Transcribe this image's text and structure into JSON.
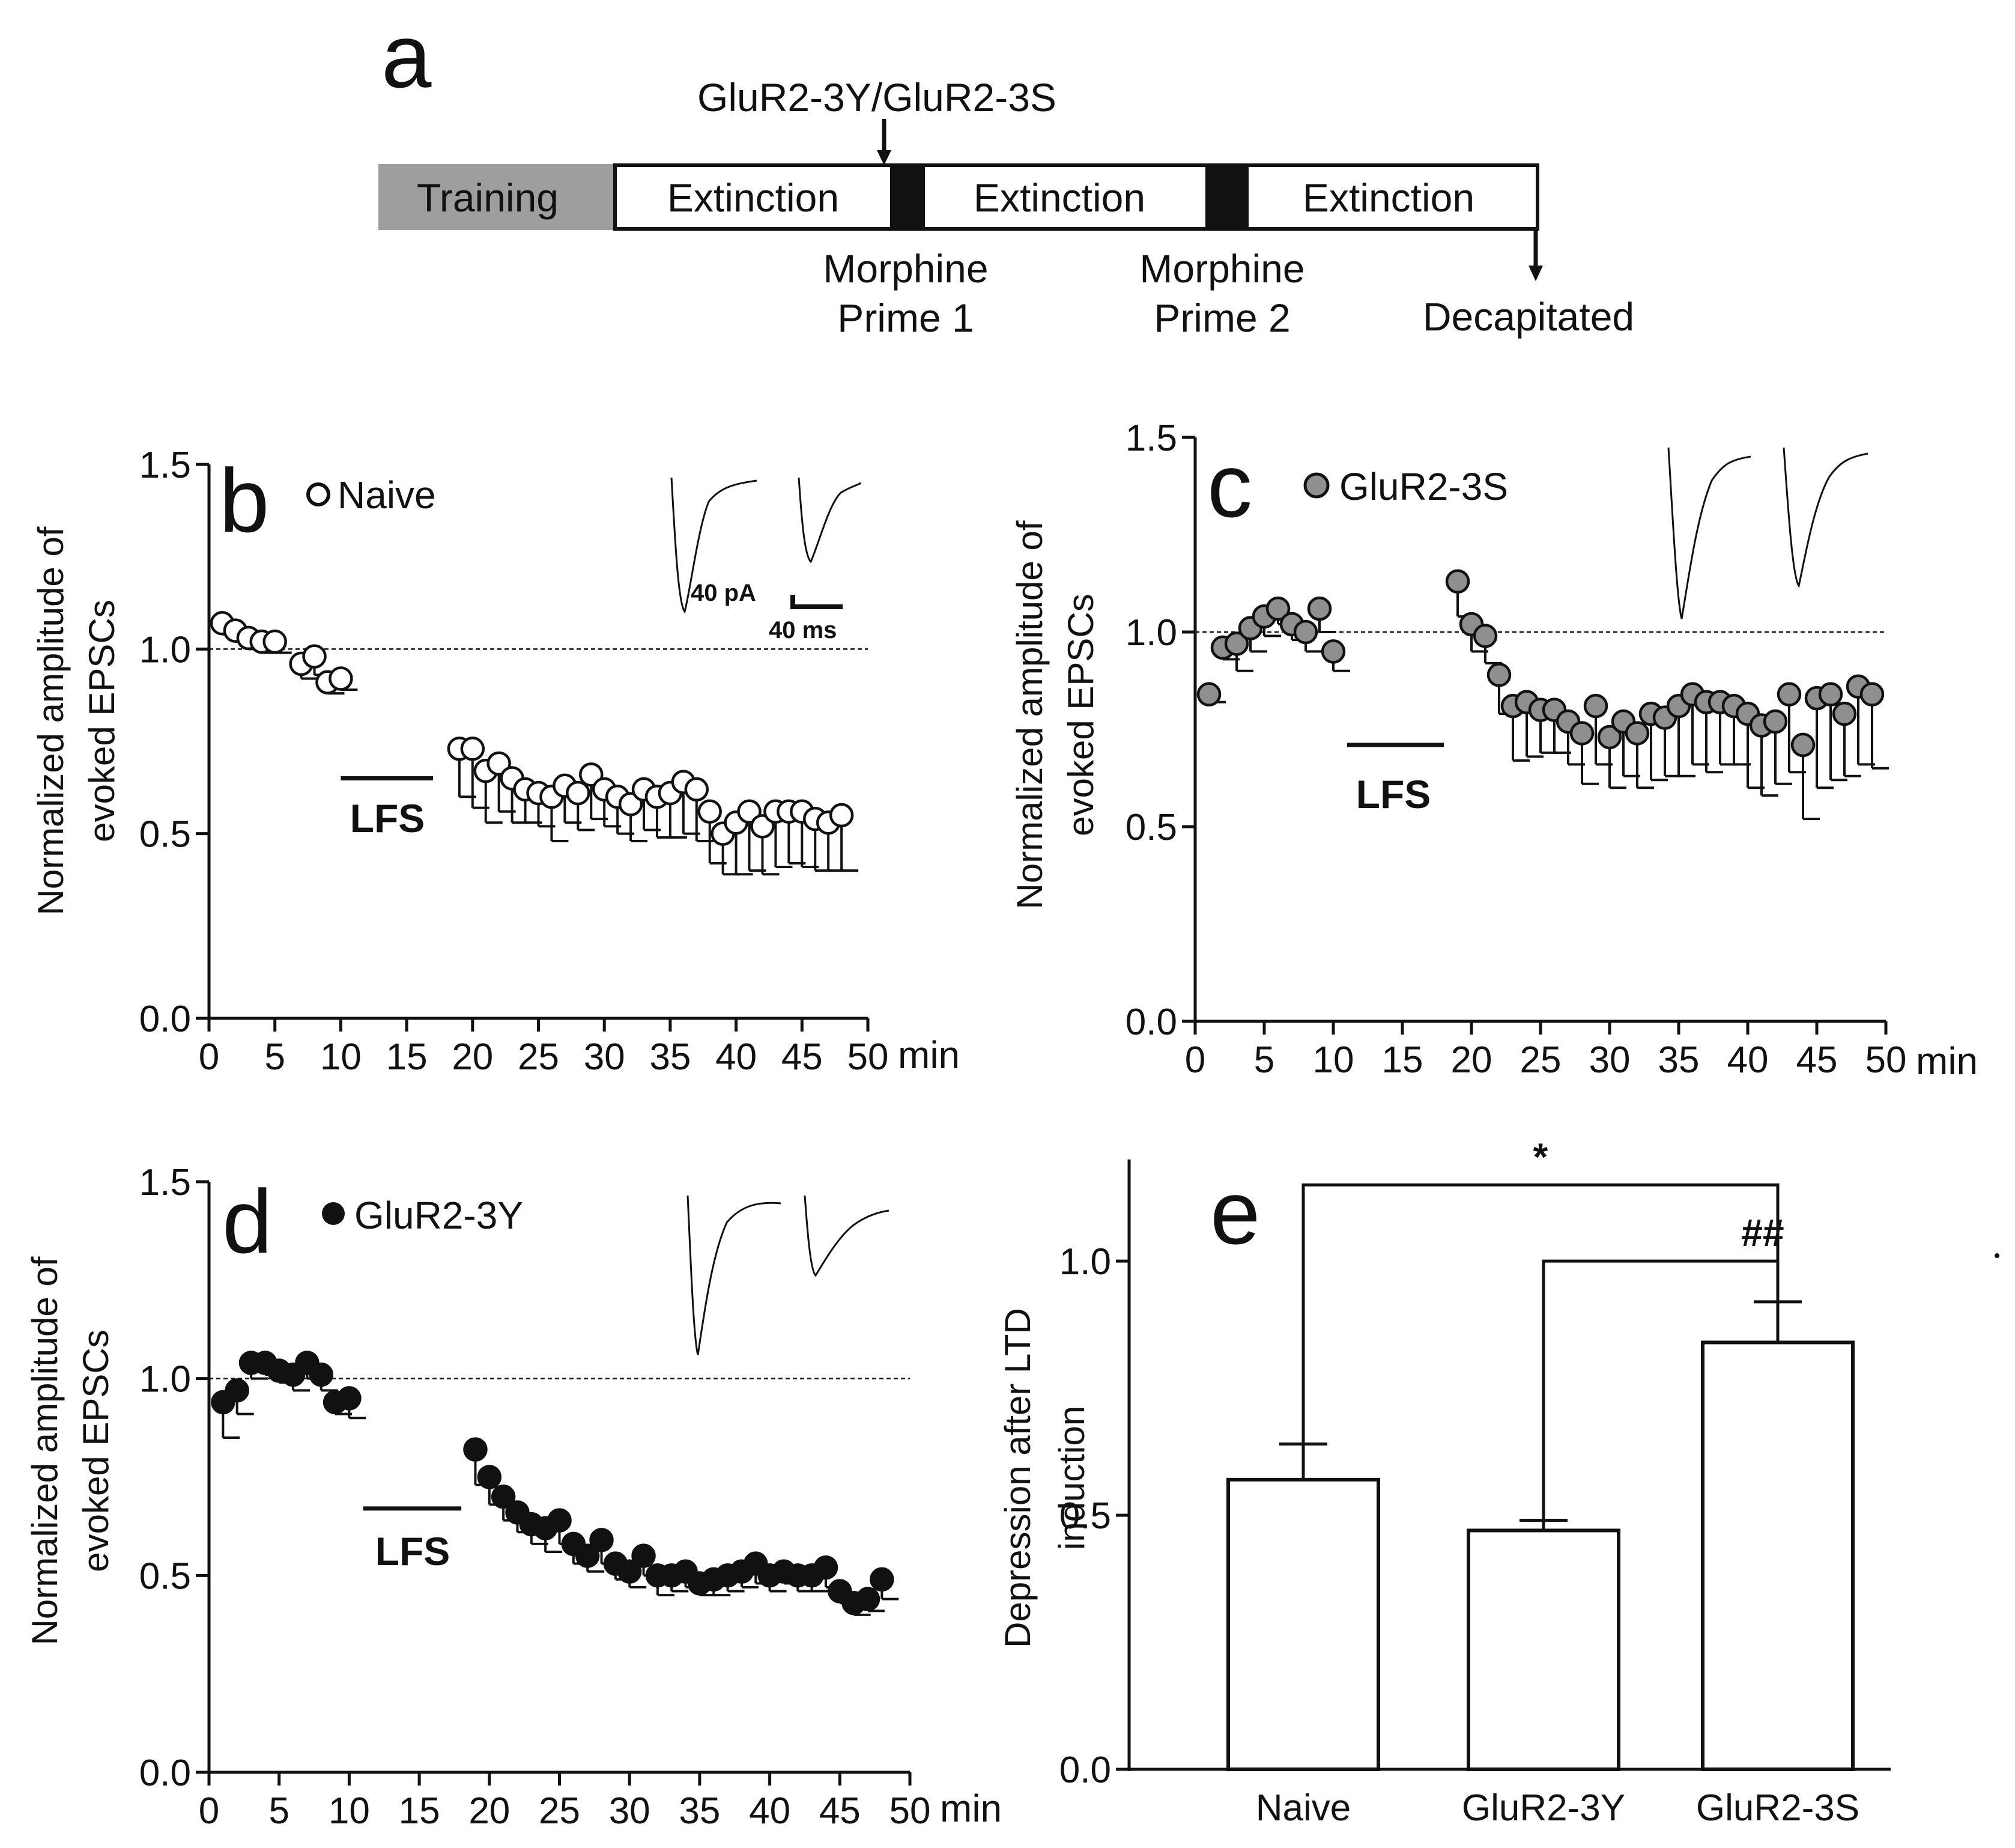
{
  "panel_a": {
    "letter": "a",
    "injection_label": "GluR2-3Y/GluR2-3S",
    "boxes": [
      "Training",
      "Extinction",
      "Extinction",
      "Extinction"
    ],
    "prime1": [
      "Morphine",
      "Prime 1"
    ],
    "prime2": [
      "Morphine",
      "Prime 2"
    ],
    "end_label": "Decapitated",
    "colors": {
      "training": "#9e9e9e",
      "prime": "#111111"
    }
  },
  "chart_data": [
    {
      "id": "b",
      "type": "scatter",
      "letter": "b",
      "legend": "Naive",
      "marker": "open",
      "ylabel": [
        "Normalized amplitude of",
        "evoked EPSCs"
      ],
      "xlabel": "min",
      "xlim": [
        0,
        50
      ],
      "ylim": [
        0,
        1.5
      ],
      "xticks": [
        "0",
        "5",
        "10",
        "15",
        "20",
        "25",
        "30",
        "35",
        "40",
        "45",
        "50"
      ],
      "yticks": [
        "0.0",
        "0.5",
        "1.0",
        "1.5"
      ],
      "baseline": 1.0,
      "lfs": {
        "label": "LFS",
        "start": 10,
        "end": 17
      },
      "scale_bar": {
        "amp": "40 pA",
        "time": "40 ms"
      },
      "points": [
        [
          1,
          1.07,
          0.03
        ],
        [
          2,
          1.05,
          0.03
        ],
        [
          3,
          1.03,
          0.03
        ],
        [
          4,
          1.02,
          0.03
        ],
        [
          5,
          1.02,
          0.03
        ],
        [
          7,
          0.96,
          0.04
        ],
        [
          8,
          0.98,
          0.05
        ],
        [
          9,
          0.91,
          0.03
        ],
        [
          10,
          0.92,
          0.03
        ],
        [
          19,
          0.73,
          0.13
        ],
        [
          20,
          0.73,
          0.16
        ],
        [
          21,
          0.67,
          0.14
        ],
        [
          22,
          0.69,
          0.13
        ],
        [
          23,
          0.65,
          0.12
        ],
        [
          24,
          0.62,
          0.09
        ],
        [
          25,
          0.61,
          0.09
        ],
        [
          26,
          0.6,
          0.12
        ],
        [
          27,
          0.63,
          0.1
        ],
        [
          28,
          0.61,
          0.1
        ],
        [
          29,
          0.66,
          0.12
        ],
        [
          30,
          0.62,
          0.1
        ],
        [
          31,
          0.6,
          0.1
        ],
        [
          32,
          0.58,
          0.1
        ],
        [
          33,
          0.62,
          0.11
        ],
        [
          34,
          0.6,
          0.11
        ],
        [
          35,
          0.61,
          0.12
        ],
        [
          36,
          0.64,
          0.14
        ],
        [
          37,
          0.62,
          0.14
        ],
        [
          38,
          0.56,
          0.14
        ],
        [
          39,
          0.5,
          0.11
        ],
        [
          40,
          0.53,
          0.14
        ],
        [
          41,
          0.56,
          0.16
        ],
        [
          42,
          0.52,
          0.13
        ],
        [
          43,
          0.56,
          0.15
        ],
        [
          44,
          0.56,
          0.14
        ],
        [
          45,
          0.56,
          0.15
        ],
        [
          46,
          0.54,
          0.14
        ],
        [
          47,
          0.53,
          0.13
        ],
        [
          48,
          0.55,
          0.15
        ]
      ]
    },
    {
      "id": "c",
      "type": "scatter",
      "letter": "c",
      "legend": "GluR2-3S",
      "marker": "grey",
      "ylabel": [
        "Normalized amplitude of",
        "evoked EPSCs"
      ],
      "xlabel": "min",
      "xlim": [
        0,
        50
      ],
      "ylim": [
        0,
        1.5
      ],
      "xticks": [
        "0",
        "5",
        "10",
        "15",
        "20",
        "25",
        "30",
        "35",
        "40",
        "45",
        "50"
      ],
      "yticks": [
        "0.0",
        "0.5",
        "1.0",
        "1.5"
      ],
      "baseline": 1.0,
      "lfs": {
        "label": "LFS",
        "start": 11,
        "end": 18
      },
      "points": [
        [
          1,
          0.84,
          0.02
        ],
        [
          2,
          0.96,
          0.03
        ],
        [
          3,
          0.97,
          0.07
        ],
        [
          4,
          1.01,
          0.06
        ],
        [
          5,
          1.04,
          0.05
        ],
        [
          6,
          1.06,
          0.04
        ],
        [
          7,
          1.02,
          0.04
        ],
        [
          8,
          1.0,
          0.05
        ],
        [
          9,
          1.06,
          0.06
        ],
        [
          10,
          0.95,
          0.05
        ],
        [
          19,
          1.13,
          0.09
        ],
        [
          20,
          1.02,
          0.07
        ],
        [
          21,
          0.99,
          0.07
        ],
        [
          22,
          0.89,
          0.1
        ],
        [
          23,
          0.81,
          0.14
        ],
        [
          24,
          0.82,
          0.14
        ],
        [
          25,
          0.8,
          0.11
        ],
        [
          26,
          0.8,
          0.11
        ],
        [
          27,
          0.77,
          0.11
        ],
        [
          28,
          0.74,
          0.13
        ],
        [
          29,
          0.81,
          0.15
        ],
        [
          30,
          0.73,
          0.13
        ],
        [
          31,
          0.77,
          0.14
        ],
        [
          32,
          0.74,
          0.14
        ],
        [
          33,
          0.79,
          0.17
        ],
        [
          34,
          0.78,
          0.15
        ],
        [
          35,
          0.81,
          0.18
        ],
        [
          36,
          0.84,
          0.18
        ],
        [
          37,
          0.82,
          0.18
        ],
        [
          38,
          0.82,
          0.16
        ],
        [
          39,
          0.81,
          0.15
        ],
        [
          40,
          0.79,
          0.19
        ],
        [
          41,
          0.76,
          0.18
        ],
        [
          42,
          0.77,
          0.16
        ],
        [
          43,
          0.84,
          0.2
        ],
        [
          44,
          0.71,
          0.19
        ],
        [
          45,
          0.83,
          0.23
        ],
        [
          46,
          0.84,
          0.22
        ],
        [
          47,
          0.79,
          0.16
        ],
        [
          48,
          0.86,
          0.2
        ],
        [
          49,
          0.84,
          0.19
        ]
      ]
    },
    {
      "id": "d",
      "type": "scatter",
      "letter": "d",
      "legend": "GluR2-3Y",
      "marker": "filled",
      "ylabel": [
        "Normalized amplitude of",
        "evoked EPSCs"
      ],
      "xlabel": "min",
      "xlim": [
        0,
        50
      ],
      "ylim": [
        0,
        1.5
      ],
      "xticks": [
        "0",
        "5",
        "10",
        "15",
        "20",
        "25",
        "30",
        "35",
        "40",
        "45",
        "50"
      ],
      "yticks": [
        "0.0",
        "0.5",
        "1.0",
        "1.5"
      ],
      "baseline": 1.0,
      "lfs": {
        "label": "LFS",
        "start": 11,
        "end": 18
      },
      "points": [
        [
          1,
          0.94,
          0.09
        ],
        [
          2,
          0.97,
          0.06
        ],
        [
          3,
          1.04,
          0.04
        ],
        [
          4,
          1.04,
          0.03
        ],
        [
          5,
          1.02,
          0.03
        ],
        [
          6,
          1.01,
          0.04
        ],
        [
          7,
          1.04,
          0.04
        ],
        [
          8,
          1.01,
          0.04
        ],
        [
          9,
          0.94,
          0.03
        ],
        [
          10,
          0.95,
          0.05
        ],
        [
          19,
          0.82,
          0.09
        ],
        [
          20,
          0.75,
          0.07
        ],
        [
          21,
          0.7,
          0.06
        ],
        [
          22,
          0.66,
          0.05
        ],
        [
          23,
          0.63,
          0.05
        ],
        [
          24,
          0.62,
          0.06
        ],
        [
          25,
          0.64,
          0.06
        ],
        [
          26,
          0.58,
          0.05
        ],
        [
          27,
          0.55,
          0.04
        ],
        [
          28,
          0.59,
          0.06
        ],
        [
          29,
          0.53,
          0.04
        ],
        [
          30,
          0.51,
          0.04
        ],
        [
          31,
          0.55,
          0.05
        ],
        [
          32,
          0.5,
          0.05
        ],
        [
          33,
          0.5,
          0.04
        ],
        [
          34,
          0.51,
          0.04
        ],
        [
          35,
          0.48,
          0.03
        ],
        [
          36,
          0.49,
          0.04
        ],
        [
          37,
          0.5,
          0.04
        ],
        [
          38,
          0.51,
          0.04
        ],
        [
          39,
          0.53,
          0.05
        ],
        [
          40,
          0.5,
          0.04
        ],
        [
          41,
          0.51,
          0.03
        ],
        [
          42,
          0.5,
          0.04
        ],
        [
          43,
          0.5,
          0.04
        ],
        [
          44,
          0.52,
          0.05
        ],
        [
          45,
          0.46,
          0.03
        ],
        [
          46,
          0.43,
          0.03
        ],
        [
          47,
          0.44,
          0.03
        ],
        [
          48,
          0.49,
          0.05
        ]
      ]
    },
    {
      "id": "e",
      "type": "bar",
      "letter": "e",
      "categories": [
        "Naive",
        "GluR2-3Y",
        "GluR2-3S"
      ],
      "values": [
        0.57,
        0.47,
        0.84
      ],
      "errors": [
        0.07,
        0.02,
        0.08
      ],
      "ylabel": [
        "Depression after  LTD",
        "induction"
      ],
      "ylim": [
        0,
        1.2
      ],
      "yticks": [
        "0.0",
        "0.5",
        "1.0"
      ],
      "significance": [
        {
          "from": 0,
          "to": 2,
          "label": "*",
          "level": 1.15
        },
        {
          "from": 1,
          "to": 2,
          "label": "##",
          "level": 1.0
        }
      ]
    }
  ]
}
